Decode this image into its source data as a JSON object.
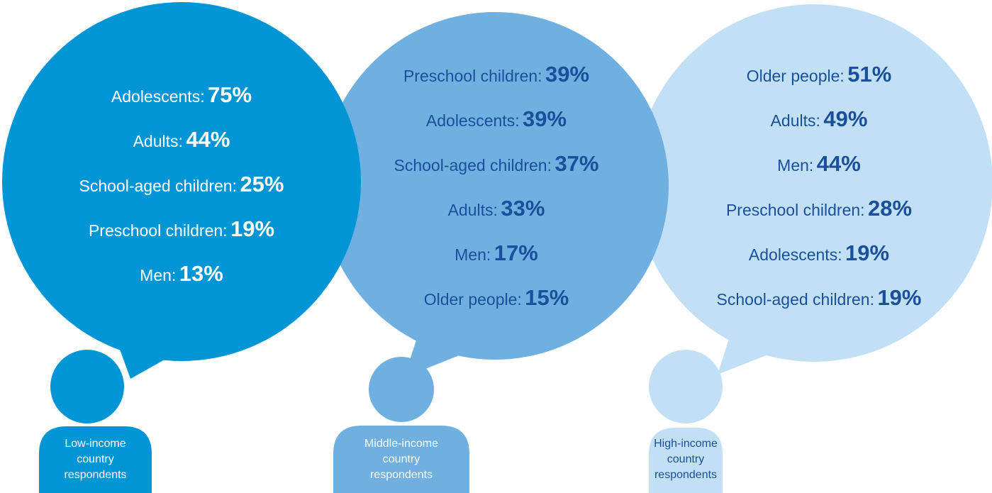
{
  "colors": {
    "low": "#0096d6",
    "middle": "#6fb0e0",
    "high": "#c2e0f5",
    "text_on_dark": "#ffffff",
    "text_on_light": "#1a4f9c"
  },
  "groups": [
    {
      "id": "low",
      "label_lines": [
        "Low-income",
        "country",
        "respondents"
      ],
      "items": [
        {
          "label": "Adolescents:",
          "value": "75%"
        },
        {
          "label": "Adults:",
          "value": "44%"
        },
        {
          "label": "School-aged children:",
          "value": "25%"
        },
        {
          "label": "Preschool children:",
          "value": "19%"
        },
        {
          "label": "Men:",
          "value": "13%"
        }
      ]
    },
    {
      "id": "middle",
      "label_lines": [
        "Middle-income",
        "country",
        "respondents"
      ],
      "items": [
        {
          "label": "Preschool children:",
          "value": "39%"
        },
        {
          "label": "Adolescents:",
          "value": "39%"
        },
        {
          "label": "School-aged children:",
          "value": "37%"
        },
        {
          "label": "Adults:",
          "value": "33%"
        },
        {
          "label": "Men:",
          "value": "17%"
        },
        {
          "label": "Older people:",
          "value": "15%"
        }
      ]
    },
    {
      "id": "high",
      "label_lines": [
        "High-income",
        "country",
        "respondents"
      ],
      "items": [
        {
          "label": "Older people:",
          "value": "51%"
        },
        {
          "label": "Adults:",
          "value": "49%"
        },
        {
          "label": "Men:",
          "value": "44%"
        },
        {
          "label": "Preschool children:",
          "value": "28%"
        },
        {
          "label": "Adolescents:",
          "value": "19%"
        },
        {
          "label": "School-aged children:",
          "value": "19%"
        }
      ]
    }
  ]
}
